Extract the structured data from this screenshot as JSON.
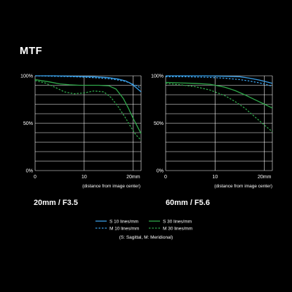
{
  "page_title": "MTF",
  "colors": {
    "blue": "#3aa0e8",
    "green": "#2fa84a",
    "grid": "#ffffff",
    "background": "#000000"
  },
  "legend": {
    "items": [
      {
        "label": "S  10 lines/mm",
        "color": "#3aa0e8",
        "dash": false
      },
      {
        "label": "M 10 lines/mm",
        "color": "#3aa0e8",
        "dash": true
      },
      {
        "label": "S  30 lines/mm",
        "color": "#2fa84a",
        "dash": false
      },
      {
        "label": "M 30 lines/mm",
        "color": "#2fa84a",
        "dash": true
      }
    ],
    "note": "(S: Sagittal, M: Meridional)"
  },
  "chart_data": [
    {
      "type": "line",
      "title": "20mm / F3.5",
      "xlabel": "(distance from image center)",
      "ylabel": "",
      "xlim": [
        0,
        21.6
      ],
      "ylim": [
        0,
        100
      ],
      "x_ticks": [
        0,
        10,
        20
      ],
      "x_tick_labels": [
        "0",
        "10",
        "20mm"
      ],
      "y_ticks": [
        0,
        50,
        100
      ],
      "y_tick_labels": [
        "0%",
        "50%",
        "100%"
      ],
      "grid": true,
      "series": [
        {
          "name": "S  10 lines/mm",
          "color": "#3aa0e8",
          "dash": false,
          "x": [
            0,
            4,
            8,
            12,
            15,
            17,
            18.5,
            19.5,
            20.5,
            21.6
          ],
          "y": [
            100,
            100,
            99.5,
            99,
            98,
            96.5,
            94.5,
            92,
            88,
            83
          ]
        },
        {
          "name": "M 10 lines/mm",
          "color": "#3aa0e8",
          "dash": true,
          "x": [
            0,
            4,
            8,
            12,
            15,
            17,
            18.5,
            19.5,
            20.5,
            21.6
          ],
          "y": [
            100,
            99.5,
            99,
            98,
            97,
            95.5,
            94,
            92,
            90,
            87
          ]
        },
        {
          "name": "S  30 lines/mm",
          "color": "#2fa84a",
          "dash": false,
          "x": [
            0,
            3,
            5,
            7,
            9,
            11,
            13,
            15,
            16.5,
            18,
            19,
            20,
            21,
            21.6
          ],
          "y": [
            96,
            93.5,
            91.5,
            90.5,
            90,
            90,
            90,
            89.5,
            86,
            76,
            66,
            55,
            45,
            39
          ]
        },
        {
          "name": "M 30 lines/mm",
          "color": "#2fa84a",
          "dash": true,
          "x": [
            0,
            2,
            4,
            6,
            8,
            10,
            12,
            14,
            15.5,
            17,
            18.5,
            19.5,
            20.5,
            21.6
          ],
          "y": [
            95,
            92.5,
            88,
            83,
            81,
            82,
            84,
            83,
            77,
            67,
            55,
            46,
            38,
            32
          ]
        }
      ]
    },
    {
      "type": "line",
      "title": "60mm / F5.6",
      "xlabel": "(distance from image center)",
      "ylabel": "",
      "xlim": [
        0,
        21.6
      ],
      "ylim": [
        0,
        100
      ],
      "x_ticks": [
        0,
        10,
        20
      ],
      "x_tick_labels": [
        "0",
        "10",
        "20mm"
      ],
      "y_ticks": [
        0,
        50,
        100
      ],
      "y_tick_labels": [
        "0%",
        "50%",
        "100%"
      ],
      "grid": true,
      "series": [
        {
          "name": "S  10 lines/mm",
          "color": "#3aa0e8",
          "dash": false,
          "x": [
            0,
            4,
            8,
            12,
            15,
            17,
            19,
            20.5,
            21.6
          ],
          "y": [
            100,
            100,
            100,
            99.5,
            99,
            97.5,
            95.5,
            93.5,
            92
          ]
        },
        {
          "name": "M 10 lines/mm",
          "color": "#3aa0e8",
          "dash": true,
          "x": [
            0,
            4,
            8,
            12,
            15,
            17,
            19,
            20.5,
            21.6
          ],
          "y": [
            99,
            99,
            98.5,
            97.5,
            96,
            94.5,
            92.5,
            90.5,
            89
          ]
        },
        {
          "name": "S  30 lines/mm",
          "color": "#2fa84a",
          "dash": false,
          "x": [
            0,
            3,
            6,
            9,
            12,
            14,
            16,
            18,
            20,
            21.6
          ],
          "y": [
            93,
            92.5,
            92,
            91,
            88,
            84.5,
            80,
            75,
            70,
            66
          ]
        },
        {
          "name": "M 30 lines/mm",
          "color": "#2fa84a",
          "dash": true,
          "x": [
            0,
            3,
            6,
            9,
            12,
            14,
            16,
            18,
            20,
            21.6
          ],
          "y": [
            92,
            90.5,
            88.5,
            85,
            79,
            73,
            66,
            57,
            48,
            41
          ]
        }
      ]
    }
  ]
}
